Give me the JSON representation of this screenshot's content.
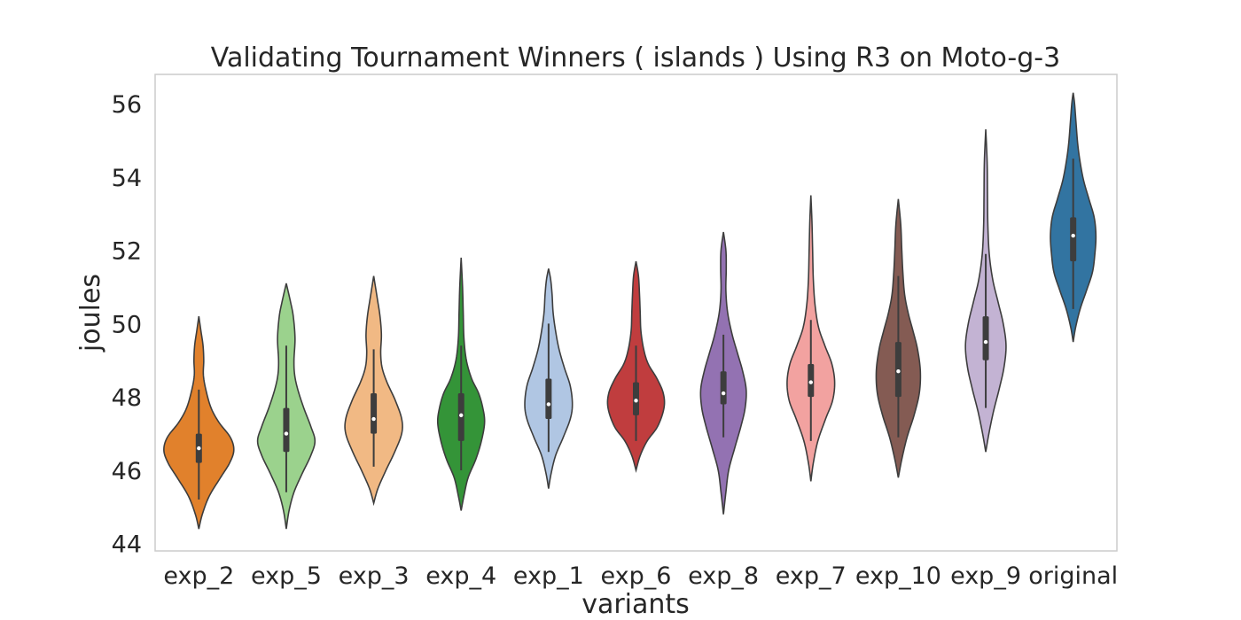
{
  "chart_data": {
    "type": "violin",
    "title": "Validating Tournament Winners ( islands ) Using R3 on Moto-g-3",
    "xlabel": "variants",
    "ylabel": "joules",
    "ylim": [
      43.8,
      56.8
    ],
    "yticks": [
      44,
      46,
      48,
      50,
      52,
      54,
      56
    ],
    "ytick_labels": [
      "44",
      "46",
      "48",
      "50",
      "52",
      "54",
      "56"
    ],
    "grid": false,
    "categories": [
      "exp_2",
      "exp_5",
      "exp_3",
      "exp_4",
      "exp_1",
      "exp_6",
      "exp_8",
      "exp_7",
      "exp_10",
      "exp_9",
      "original"
    ],
    "colors": [
      "#e1812c",
      "#9bd28d",
      "#f1b984",
      "#349438",
      "#b0c6e3",
      "#c03d3e",
      "#9372b2",
      "#f2a2a0",
      "#845b53",
      "#c3b3d3",
      "#3274a1"
    ],
    "edge_color": "#3d3d3d",
    "violins": [
      {
        "name": "exp_2",
        "range": [
          44.4,
          50.2
        ],
        "whisker": [
          45.2,
          48.2
        ],
        "q1": 46.2,
        "median": 46.6,
        "q3": 47.0,
        "profile": [
          [
            44.4,
            0.0
          ],
          [
            44.8,
            0.1
          ],
          [
            45.3,
            0.3
          ],
          [
            45.8,
            0.62
          ],
          [
            46.2,
            0.88
          ],
          [
            46.55,
            1.0
          ],
          [
            46.9,
            0.9
          ],
          [
            47.3,
            0.58
          ],
          [
            47.7,
            0.35
          ],
          [
            48.2,
            0.2
          ],
          [
            48.6,
            0.13
          ],
          [
            49.0,
            0.14
          ],
          [
            49.4,
            0.12
          ],
          [
            49.8,
            0.06
          ],
          [
            50.2,
            0.0
          ]
        ]
      },
      {
        "name": "exp_5",
        "range": [
          44.4,
          51.1
        ],
        "whisker": [
          45.4,
          49.4
        ],
        "q1": 46.5,
        "median": 47.0,
        "q3": 47.7,
        "profile": [
          [
            44.4,
            0.0
          ],
          [
            44.9,
            0.08
          ],
          [
            45.4,
            0.22
          ],
          [
            45.9,
            0.45
          ],
          [
            46.4,
            0.7
          ],
          [
            46.8,
            0.82
          ],
          [
            47.2,
            0.7
          ],
          [
            47.7,
            0.5
          ],
          [
            48.2,
            0.33
          ],
          [
            48.6,
            0.24
          ],
          [
            49.0,
            0.22
          ],
          [
            49.6,
            0.25
          ],
          [
            50.2,
            0.2
          ],
          [
            50.6,
            0.12
          ],
          [
            51.1,
            0.0
          ]
        ]
      },
      {
        "name": "exp_3",
        "range": [
          45.1,
          51.3
        ],
        "whisker": [
          46.1,
          49.3
        ],
        "q1": 47.0,
        "median": 47.4,
        "q3": 48.1,
        "profile": [
          [
            45.1,
            0.0
          ],
          [
            45.5,
            0.12
          ],
          [
            46.0,
            0.35
          ],
          [
            46.5,
            0.6
          ],
          [
            47.0,
            0.8
          ],
          [
            47.4,
            0.8
          ],
          [
            47.9,
            0.62
          ],
          [
            48.4,
            0.38
          ],
          [
            48.8,
            0.24
          ],
          [
            49.2,
            0.2
          ],
          [
            49.7,
            0.22
          ],
          [
            50.2,
            0.18
          ],
          [
            50.7,
            0.1
          ],
          [
            51.3,
            0.0
          ]
        ]
      },
      {
        "name": "exp_4",
        "range": [
          44.9,
          51.8
        ],
        "whisker": [
          46.0,
          49.4
        ],
        "q1": 46.8,
        "median": 47.5,
        "q3": 48.1,
        "profile": [
          [
            44.9,
            0.0
          ],
          [
            45.3,
            0.08
          ],
          [
            45.8,
            0.2
          ],
          [
            46.3,
            0.42
          ],
          [
            46.8,
            0.58
          ],
          [
            47.3,
            0.67
          ],
          [
            47.7,
            0.62
          ],
          [
            48.1,
            0.5
          ],
          [
            48.5,
            0.3
          ],
          [
            49.0,
            0.15
          ],
          [
            49.6,
            0.08
          ],
          [
            50.3,
            0.06
          ],
          [
            51.0,
            0.04
          ],
          [
            51.8,
            0.0
          ]
        ]
      },
      {
        "name": "exp_1",
        "range": [
          45.5,
          51.5
        ],
        "whisker": [
          46.5,
          50.0
        ],
        "q1": 47.4,
        "median": 47.8,
        "q3": 48.5,
        "profile": [
          [
            45.5,
            0.0
          ],
          [
            45.9,
            0.07
          ],
          [
            46.4,
            0.2
          ],
          [
            46.9,
            0.42
          ],
          [
            47.4,
            0.62
          ],
          [
            47.8,
            0.68
          ],
          [
            48.3,
            0.62
          ],
          [
            48.8,
            0.45
          ],
          [
            49.3,
            0.3
          ],
          [
            49.8,
            0.2
          ],
          [
            50.3,
            0.13
          ],
          [
            50.8,
            0.1
          ],
          [
            51.2,
            0.06
          ],
          [
            51.5,
            0.0
          ]
        ]
      },
      {
        "name": "exp_6",
        "range": [
          46.0,
          51.7
        ],
        "whisker": [
          46.8,
          49.4
        ],
        "q1": 47.5,
        "median": 47.9,
        "q3": 48.4,
        "profile": [
          [
            46.0,
            0.0
          ],
          [
            46.4,
            0.12
          ],
          [
            46.8,
            0.32
          ],
          [
            47.2,
            0.62
          ],
          [
            47.7,
            0.8
          ],
          [
            48.1,
            0.78
          ],
          [
            48.5,
            0.6
          ],
          [
            48.9,
            0.35
          ],
          [
            49.3,
            0.22
          ],
          [
            49.8,
            0.14
          ],
          [
            50.3,
            0.12
          ],
          [
            50.8,
            0.1
          ],
          [
            51.3,
            0.07
          ],
          [
            51.7,
            0.0
          ]
        ]
      },
      {
        "name": "exp_8",
        "range": [
          44.8,
          52.5
        ],
        "whisker": [
          46.9,
          49.7
        ],
        "q1": 47.8,
        "median": 48.1,
        "q3": 48.7,
        "profile": [
          [
            44.8,
            0.0
          ],
          [
            45.4,
            0.07
          ],
          [
            46.0,
            0.15
          ],
          [
            46.6,
            0.32
          ],
          [
            47.2,
            0.5
          ],
          [
            47.7,
            0.62
          ],
          [
            48.2,
            0.65
          ],
          [
            48.7,
            0.55
          ],
          [
            49.2,
            0.4
          ],
          [
            49.7,
            0.25
          ],
          [
            50.3,
            0.12
          ],
          [
            50.9,
            0.07
          ],
          [
            51.5,
            0.08
          ],
          [
            52.0,
            0.07
          ],
          [
            52.5,
            0.0
          ]
        ]
      },
      {
        "name": "exp_7",
        "range": [
          45.7,
          53.5
        ],
        "whisker": [
          46.8,
          50.1
        ],
        "q1": 48.0,
        "median": 48.4,
        "q3": 48.9,
        "profile": [
          [
            45.7,
            0.0
          ],
          [
            46.2,
            0.07
          ],
          [
            46.8,
            0.2
          ],
          [
            47.4,
            0.42
          ],
          [
            47.9,
            0.62
          ],
          [
            48.4,
            0.68
          ],
          [
            48.9,
            0.6
          ],
          [
            49.4,
            0.4
          ],
          [
            49.9,
            0.22
          ],
          [
            50.5,
            0.12
          ],
          [
            51.2,
            0.07
          ],
          [
            52.0,
            0.05
          ],
          [
            52.8,
            0.03
          ],
          [
            53.5,
            0.0
          ]
        ]
      },
      {
        "name": "exp_10",
        "range": [
          45.8,
          53.4
        ],
        "whisker": [
          46.9,
          51.3
        ],
        "q1": 48.0,
        "median": 48.7,
        "q3": 49.5,
        "profile": [
          [
            45.8,
            0.0
          ],
          [
            46.3,
            0.1
          ],
          [
            46.9,
            0.25
          ],
          [
            47.5,
            0.45
          ],
          [
            48.1,
            0.6
          ],
          [
            48.7,
            0.63
          ],
          [
            49.3,
            0.55
          ],
          [
            49.8,
            0.42
          ],
          [
            50.3,
            0.28
          ],
          [
            50.8,
            0.18
          ],
          [
            51.4,
            0.13
          ],
          [
            52.0,
            0.1
          ],
          [
            52.7,
            0.07
          ],
          [
            53.4,
            0.0
          ]
        ]
      },
      {
        "name": "exp_9",
        "range": [
          46.5,
          55.3
        ],
        "whisker": [
          47.7,
          51.9
        ],
        "q1": 49.0,
        "median": 49.5,
        "q3": 50.2,
        "profile": [
          [
            46.5,
            0.0
          ],
          [
            47.0,
            0.09
          ],
          [
            47.6,
            0.22
          ],
          [
            48.2,
            0.38
          ],
          [
            48.8,
            0.52
          ],
          [
            49.4,
            0.58
          ],
          [
            50.0,
            0.5
          ],
          [
            50.6,
            0.35
          ],
          [
            51.2,
            0.2
          ],
          [
            51.9,
            0.1
          ],
          [
            52.7,
            0.06
          ],
          [
            53.5,
            0.05
          ],
          [
            54.4,
            0.04
          ],
          [
            55.3,
            0.0
          ]
        ]
      },
      {
        "name": "original",
        "range": [
          49.5,
          56.3
        ],
        "whisker": [
          50.4,
          54.5
        ],
        "q1": 51.7,
        "median": 52.4,
        "q3": 52.9,
        "profile": [
          [
            49.5,
            0.0
          ],
          [
            49.9,
            0.07
          ],
          [
            50.4,
            0.2
          ],
          [
            50.9,
            0.38
          ],
          [
            51.4,
            0.55
          ],
          [
            51.9,
            0.62
          ],
          [
            52.4,
            0.65
          ],
          [
            52.9,
            0.6
          ],
          [
            53.4,
            0.45
          ],
          [
            53.9,
            0.3
          ],
          [
            54.4,
            0.2
          ],
          [
            54.9,
            0.13
          ],
          [
            55.5,
            0.08
          ],
          [
            56.0,
            0.04
          ],
          [
            56.3,
            0.0
          ]
        ]
      }
    ]
  }
}
